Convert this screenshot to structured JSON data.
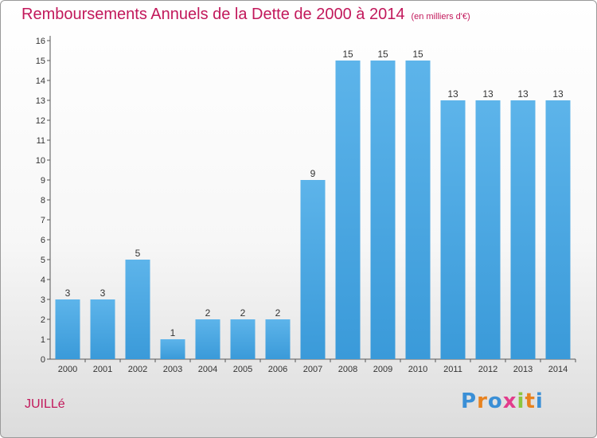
{
  "chart_data": {
    "type": "bar",
    "title": "Remboursements Annuels de la Dette de 2000 à 2014",
    "unit": "(en milliers d'€)",
    "categories": [
      "2000",
      "2001",
      "2002",
      "2003",
      "2004",
      "2005",
      "2006",
      "2007",
      "2008",
      "2009",
      "2010",
      "2011",
      "2012",
      "2013",
      "2014"
    ],
    "values": [
      3,
      3,
      5,
      1,
      2,
      2,
      2,
      9,
      15,
      15,
      15,
      13,
      13,
      13,
      13
    ],
    "ylim": [
      0,
      16
    ],
    "yticks": [
      "0",
      "1",
      "2",
      "3",
      "4",
      "5",
      "6",
      "7",
      "8",
      "9",
      "10",
      "11",
      "12",
      "13",
      "14",
      "15",
      "16"
    ],
    "grid": false,
    "bar_color": "#3a9ad9",
    "bar_color_light": "#5db4ea"
  },
  "commune": "JUILLé",
  "logo": {
    "letters": [
      "P",
      "r",
      "o",
      "x",
      "i",
      "t",
      "i"
    ],
    "colors": [
      "#3a8fd6",
      "#e8821e",
      "#3a8fd6",
      "#e23c8c",
      "#8cc63f",
      "#e8821e",
      "#3a8fd6"
    ]
  },
  "colors": {
    "accent": "#c2185b"
  }
}
